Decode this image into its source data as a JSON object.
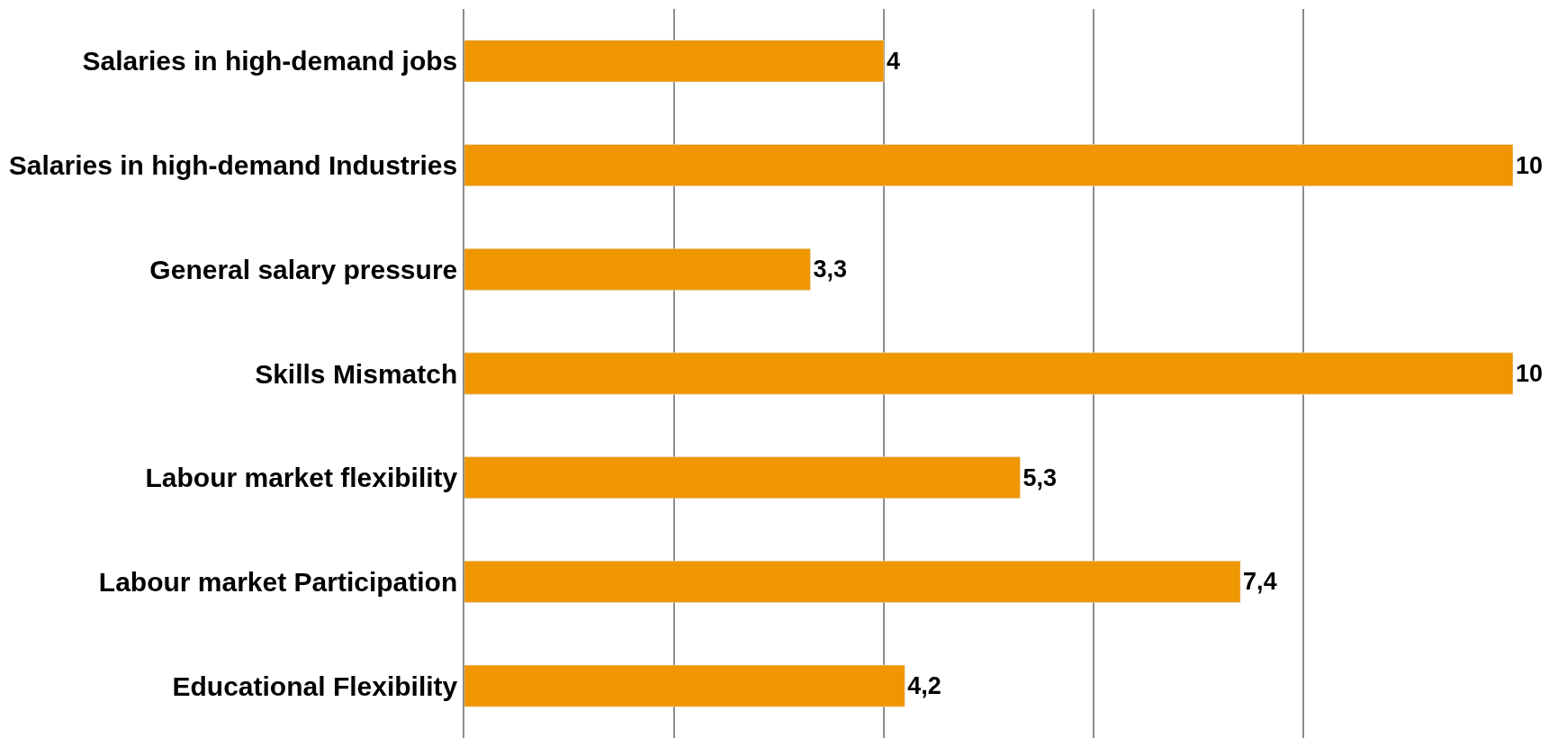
{
  "chart_data": {
    "type": "bar",
    "orientation": "horizontal",
    "categories": [
      "Salaries in high-demand jobs",
      "Salaries in high-demand Industries",
      "General salary pressure",
      "Skills Mismatch",
      "Labour market flexibility",
      "Labour market Participation",
      "Educational Flexibility"
    ],
    "values": [
      4,
      10,
      3.3,
      10,
      5.3,
      7.4,
      4.2
    ],
    "value_labels": [
      "4",
      "10",
      "3,3",
      "10",
      "5,3",
      "7,4",
      "4,2"
    ],
    "color": "#ef9600",
    "xlim": [
      0,
      10
    ],
    "xticks": [
      {
        "value": 0,
        "label": null
      },
      {
        "value": 2,
        "label": null
      },
      {
        "value": 4,
        "label": null
      },
      {
        "value": 6,
        "label": null
      },
      {
        "value": 8,
        "label": null
      }
    ],
    "grid": "x",
    "tick_labels": "y",
    "legend": false
  }
}
